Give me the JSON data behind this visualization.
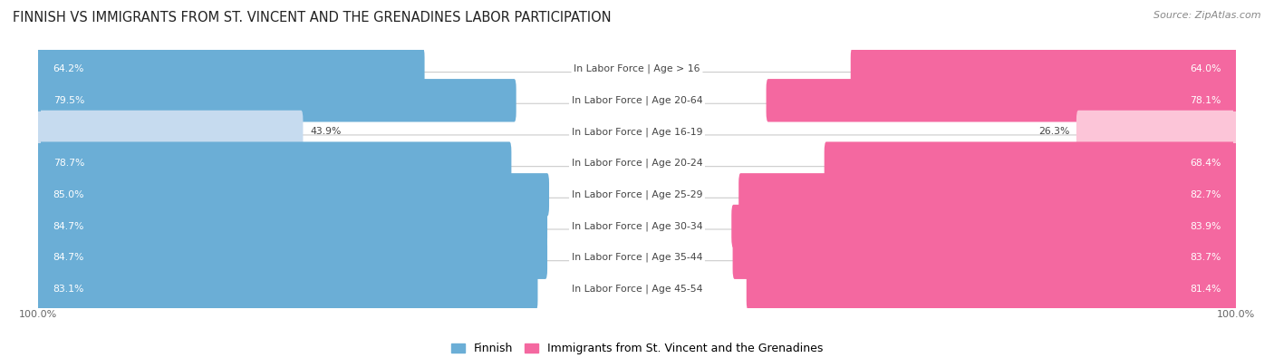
{
  "title": "Finnish vs Immigrants from St. Vincent and the Grenadines Labor Participation",
  "source": "Source: ZipAtlas.com",
  "categories": [
    "In Labor Force | Age > 16",
    "In Labor Force | Age 20-64",
    "In Labor Force | Age 16-19",
    "In Labor Force | Age 20-24",
    "In Labor Force | Age 25-29",
    "In Labor Force | Age 30-34",
    "In Labor Force | Age 35-44",
    "In Labor Force | Age 45-54"
  ],
  "finnish_values": [
    64.2,
    79.5,
    43.9,
    78.7,
    85.0,
    84.7,
    84.7,
    83.1
  ],
  "immigrant_values": [
    64.0,
    78.1,
    26.3,
    68.4,
    82.7,
    83.9,
    83.7,
    81.4
  ],
  "finnish_color": "#6baed6",
  "immigrant_color": "#f468a0",
  "finnish_color_light": "#c6dbef",
  "immigrant_color_light": "#fcc5d8",
  "row_bg_color": "#f0f0f0",
  "row_border_color": "#d8d8d8",
  "max_value": 100.0,
  "legend_finnish": "Finnish",
  "legend_immigrant": "Immigrants from St. Vincent and the Grenadines",
  "title_fontsize": 10.5,
  "source_fontsize": 8,
  "label_fontsize": 7.8,
  "value_fontsize": 7.8
}
